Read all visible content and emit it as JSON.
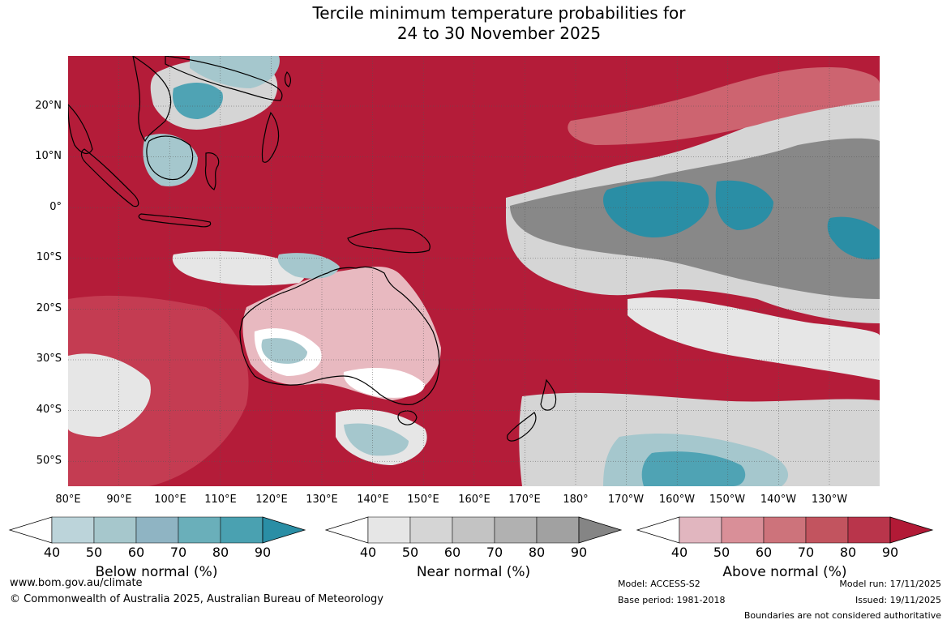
{
  "title": {
    "line1": "Tercile minimum temperature probabilities for",
    "line2": "24 to 30 November 2025"
  },
  "map": {
    "latitude_labels": [
      "20°N",
      "10°N",
      "0°",
      "10°S",
      "20°S",
      "30°S",
      "40°S",
      "50°S"
    ],
    "longitude_labels": [
      "80°E",
      "90°E",
      "100°E",
      "110°E",
      "120°E",
      "130°E",
      "140°E",
      "150°E",
      "160°E",
      "170°E",
      "180°",
      "170°W",
      "160°W",
      "150°W",
      "140°W",
      "130°W"
    ],
    "colors": {
      "ocean_above_90": "#b41c39",
      "above_80": "#c43c52",
      "above_70": "#cd6470",
      "above_60": "#de97a2",
      "above_50": "#e8b9c0",
      "near_80": "#888888",
      "near_70": "#a6a6a6",
      "near_50": "#d5d5d5",
      "near_40": "#e6e6e6",
      "below_60": "#a5c7cd",
      "below_80": "#4fa3b4",
      "below_90": "#2a8ea5",
      "white": "#ffffff",
      "coast": "#000000",
      "grid": "#555555"
    }
  },
  "colorbars": [
    {
      "title": "Below normal (%)",
      "ticks": [
        "40",
        "50",
        "60",
        "70",
        "80",
        "90"
      ],
      "colors": [
        "#ffffff",
        "#bcd4da",
        "#a6c7cc",
        "#8fb4c3",
        "#6aafba",
        "#4aa1b1",
        "#2a8ea5"
      ]
    },
    {
      "title": "Near normal (%)",
      "ticks": [
        "40",
        "50",
        "60",
        "70",
        "80",
        "90"
      ],
      "colors": [
        "#ffffff",
        "#e6e6e6",
        "#d5d5d5",
        "#c3c3c3",
        "#b1b1b1",
        "#a1a1a1",
        "#858585"
      ]
    },
    {
      "title": "Above normal (%)",
      "ticks": [
        "40",
        "50",
        "60",
        "70",
        "80",
        "90"
      ],
      "colors": [
        "#ffffff",
        "#e1b6bf",
        "#d98f98",
        "#cd737b",
        "#c2545f",
        "#b9354b",
        "#b21a36"
      ]
    }
  ],
  "footer": {
    "website": "www.bom.gov.au/climate",
    "copyright": "© Commonwealth of Australia 2025, Australian Bureau of Meteorology",
    "model": "Model: ACCESS-S2",
    "base_period": "Base period: 1981-2018",
    "model_run": "Model run: 17/11/2025",
    "issued": "Issued: 19/11/2025",
    "disclaimer": "Boundaries are not considered authoritative"
  }
}
